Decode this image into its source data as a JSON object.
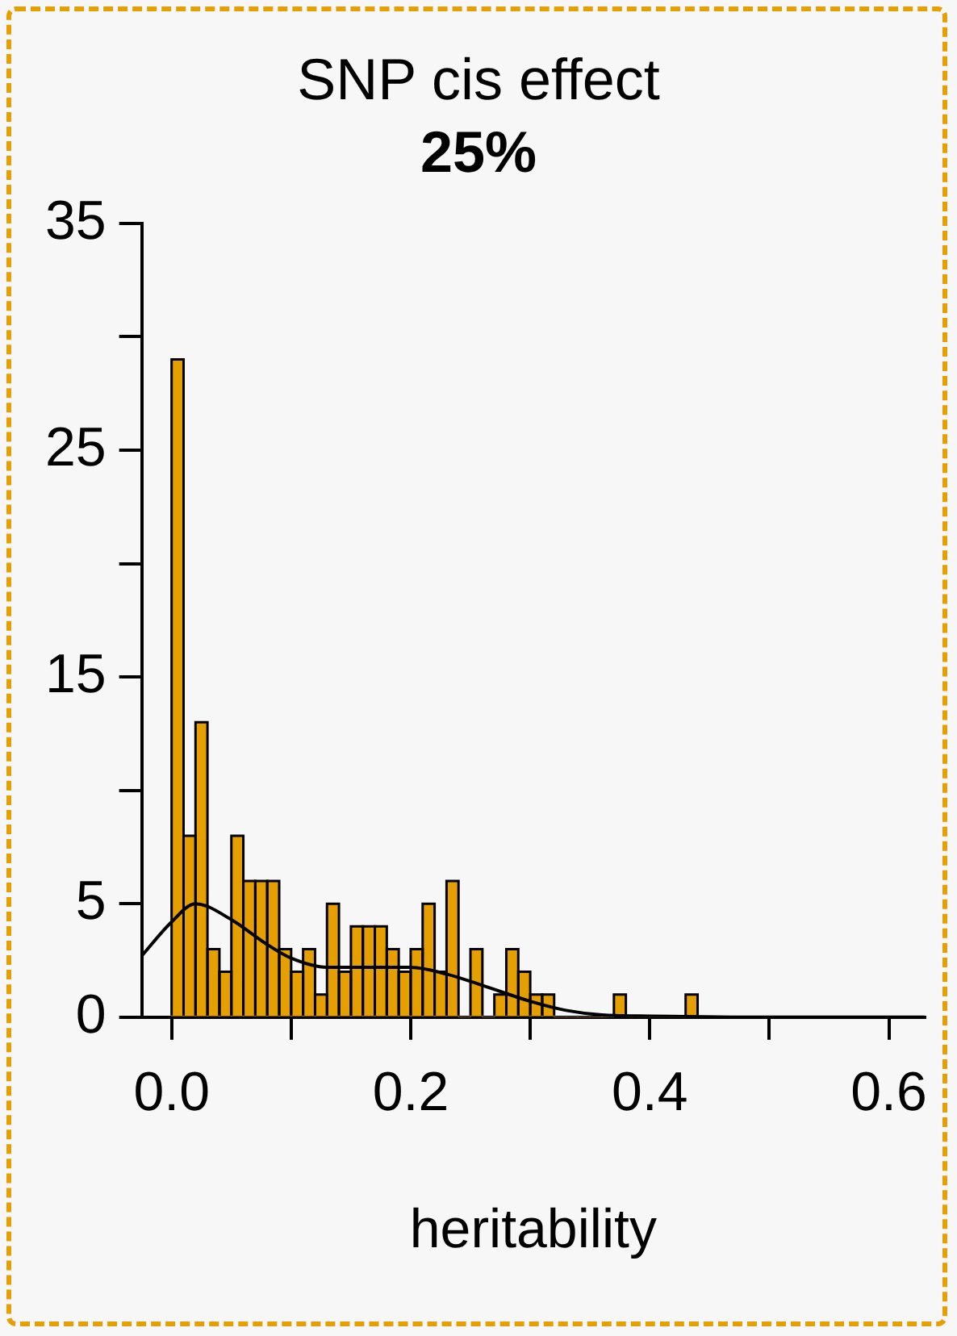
{
  "chart_data": {
    "type": "histogram",
    "title": "SNP cis effect",
    "subtitle": "25%",
    "xlabel": "heritability",
    "bins": [
      0,
      0.01,
      0.02,
      0.03,
      0.04,
      0.05,
      0.06,
      0.07,
      0.08,
      0.09,
      0.1,
      0.11,
      0.12,
      0.13,
      0.14,
      0.15,
      0.16,
      0.17,
      0.18,
      0.19,
      0.2,
      0.21,
      0.22,
      0.23,
      0.24,
      0.25,
      0.26,
      0.27,
      0.28,
      0.29,
      0.3,
      0.31,
      0.32,
      0.33,
      0.34,
      0.35,
      0.36,
      0.37,
      0.38,
      0.39,
      0.4,
      0.41,
      0.42,
      0.43,
      0.44
    ],
    "values": [
      29,
      8,
      13,
      3,
      2,
      8,
      6,
      6,
      6,
      3,
      2,
      3,
      1,
      5,
      2,
      4,
      4,
      4,
      3,
      2,
      3,
      5,
      2,
      6,
      0,
      3,
      0,
      1,
      3,
      2,
      1,
      1,
      0,
      0,
      0,
      0,
      0,
      1,
      0,
      0,
      0,
      0,
      0,
      1
    ],
    "color": "#e69f00",
    "series": [
      {
        "type": "line",
        "color": "#000000",
        "x": [
          -0.025,
          0,
          0.02,
          0.05,
          0.08,
          0.1,
          0.13,
          0.16,
          0.2,
          0.23,
          0.26,
          0.3,
          0.33,
          0.36,
          0.4,
          0.5,
          0.63
        ],
        "values": [
          2.7,
          4.2,
          5,
          4.3,
          3.2,
          2.6,
          2.2,
          2.2,
          2.2,
          1.9,
          1.4,
          0.7,
          0.3,
          0.1,
          0.05,
          0,
          0
        ]
      }
    ],
    "xlim": [
      -0.025,
      0.63
    ],
    "xticks": [
      {
        "value": 0,
        "label": "0.0"
      },
      {
        "value": 0.1,
        "label": null
      },
      {
        "value": 0.2,
        "label": "0.2"
      },
      {
        "value": 0.3,
        "label": null
      },
      {
        "value": 0.4,
        "label": "0.4"
      },
      {
        "value": 0.5,
        "label": null
      },
      {
        "value": 0.6,
        "label": "0.6"
      }
    ],
    "ylim": [
      0,
      35
    ],
    "yticks": [
      0,
      5,
      {
        "value": 10,
        "label": null
      },
      15,
      {
        "value": 20,
        "label": null
      },
      25,
      {
        "value": 30,
        "label": null
      },
      35
    ],
    "grid": false,
    "legend": false,
    "marker": "none"
  }
}
